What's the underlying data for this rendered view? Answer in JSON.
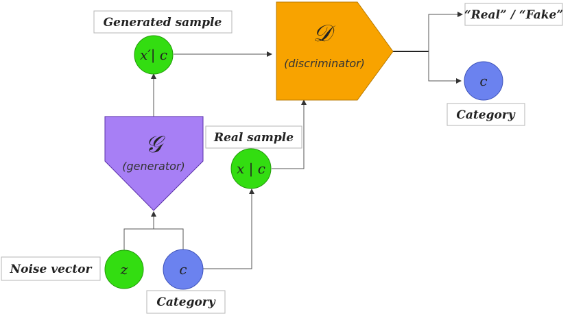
{
  "labels": {
    "generated_sample": "Generated sample",
    "real_sample": "Real sample",
    "noise_vector": "Noise vector",
    "category_bottom": "Category",
    "category_right": "Category",
    "real_fake": "“Real” / “Fake”"
  },
  "nodes": {
    "generated": "x′| c",
    "real": "x | c",
    "noise": "z",
    "category_in": "c",
    "category_out": "c"
  },
  "blocks": {
    "generator_symbol": "𝒢",
    "generator_name": "(generator)",
    "discriminator_symbol": "𝒟",
    "discriminator_name": "(discriminator)"
  },
  "colors": {
    "green_node": "#33dd11",
    "blue_node": "#6b82ef",
    "generator": "#a77ff5",
    "discriminator": "#f8a300"
  }
}
